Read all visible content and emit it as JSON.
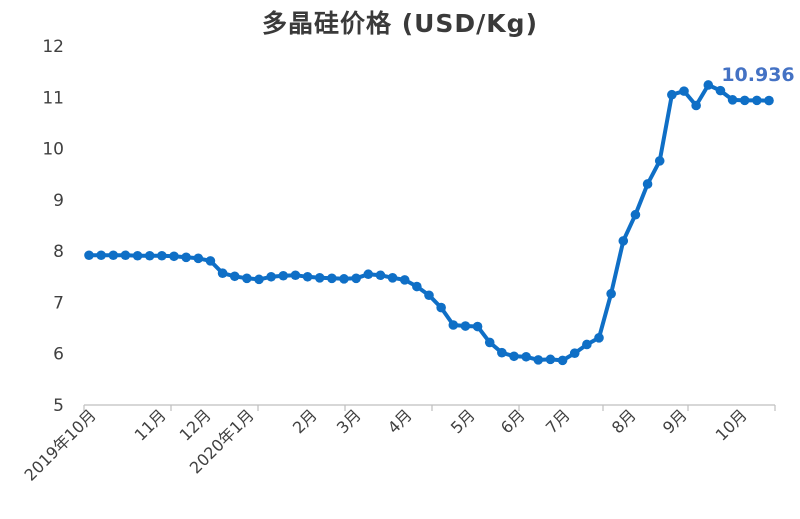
{
  "chart_data": {
    "type": "line",
    "title": "多晶硅价格 (USD/Kg)",
    "xlabel": "",
    "ylabel": "",
    "ylim": [
      5,
      12
    ],
    "y_ticks": [
      "5",
      "6",
      "7",
      "8",
      "9",
      "10",
      "11",
      "12"
    ],
    "x_tick_labels": [
      "2019年10月",
      "11月",
      "12月",
      "2020年1月",
      "2月",
      "3月",
      "4月",
      "5月",
      "6月",
      "7月",
      "8月",
      "9月",
      "10月"
    ],
    "grid": false,
    "legend": "none",
    "line_color": "#0f6fc6",
    "label_color": "#4472c4",
    "last_value_label": "10.936",
    "series": [
      {
        "values": [
          7.92,
          7.92,
          7.92,
          7.92,
          7.91,
          7.91,
          7.91,
          7.9,
          7.88,
          7.86,
          7.81,
          7.57,
          7.51,
          7.47,
          7.45,
          7.5,
          7.52,
          7.53,
          7.5,
          7.48,
          7.47,
          7.46,
          7.47,
          7.55,
          7.53,
          7.48,
          7.44,
          7.31,
          7.14,
          6.9,
          6.56,
          6.54,
          6.53,
          6.22,
          6.02,
          5.95,
          5.94,
          5.88,
          5.89,
          5.87,
          6.01,
          6.18,
          6.31,
          7.17,
          8.2,
          8.71,
          9.31,
          9.76,
          11.05,
          11.12,
          10.84,
          11.24,
          11.13,
          10.95,
          10.94,
          10.94,
          10.936
        ]
      }
    ]
  }
}
